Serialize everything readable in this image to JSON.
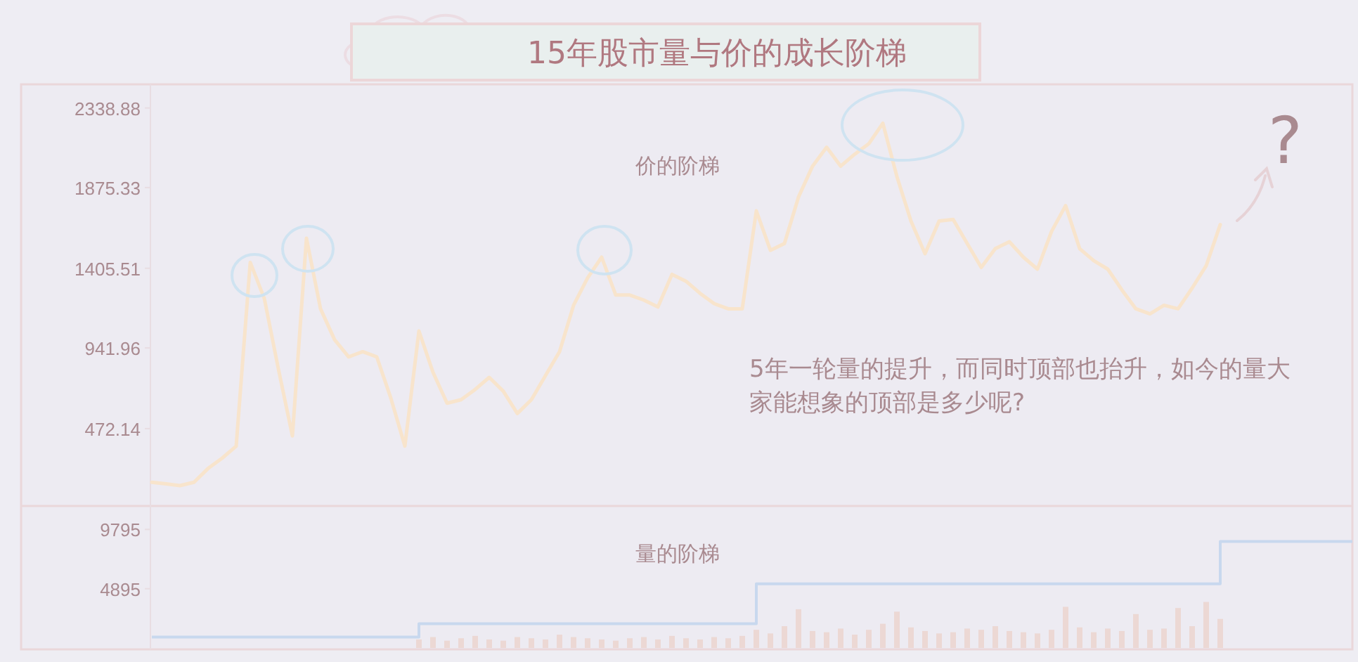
{
  "chart_data": [
    {
      "type": "line",
      "title": "15年股市量与价的成长阶梯",
      "tick_labels": "y",
      "categories": [
        null,
        null,
        null,
        null,
        null,
        null,
        null,
        null,
        null,
        null,
        null,
        null,
        null,
        null,
        null,
        null,
        null,
        null,
        null,
        null,
        null,
        null,
        null,
        null,
        null,
        null,
        null,
        null,
        null,
        null,
        null,
        null,
        null,
        null,
        null,
        null,
        null,
        null,
        null,
        null,
        null,
        null,
        null,
        null,
        null,
        null,
        null,
        null,
        null,
        null,
        null,
        null,
        null,
        null,
        null,
        null,
        null,
        null,
        null,
        null,
        null,
        null,
        null,
        null,
        null,
        null,
        null,
        null,
        null,
        null,
        null,
        null,
        null,
        null,
        null,
        null,
        null,
        null,
        null,
        null,
        null,
        null,
        null,
        null,
        null,
        null
      ],
      "series": [
        {
          "color": "#f8e4cc",
          "values": [
            160,
            150,
            140,
            160,
            240,
            300,
            370,
            1440,
            1230,
            820,
            430,
            1580,
            1170,
            990,
            890,
            920,
            890,
            650,
            370,
            1040,
            800,
            620,
            640,
            700,
            770,
            690,
            560,
            640,
            780,
            920,
            1190,
            1350,
            1470,
            1250,
            1250,
            1220,
            1180,
            1370,
            1330,
            1260,
            1200,
            1170,
            1170,
            1740,
            1510,
            1550,
            1820,
            2000,
            2110,
            2000,
            2070,
            2130,
            2250,
            1940,
            1680,
            1490,
            1680,
            1690,
            1550,
            1410,
            1520,
            1560,
            1470,
            1400,
            1620,
            1770,
            1520,
            1450,
            1400,
            1280,
            1170,
            1140,
            1190,
            1170,
            1290,
            1420,
            1660,
            null,
            null,
            null,
            null,
            null,
            null,
            null,
            null,
            null
          ]
        }
      ],
      "ylim": [
        38,
        2460
      ],
      "yticks": [
        472.14,
        941.96,
        1405.51,
        1875.33,
        2338.88
      ],
      "annotations": [
        "价的阶梯",
        "5年一轮量的提升，而同时顶部也抬升，如今的量大家能想象的顶部是多少呢?",
        "?"
      ]
    },
    {
      "type": "bar",
      "tick_labels": "y",
      "categories": [
        null,
        null,
        null,
        null,
        null,
        null,
        null,
        null,
        null,
        null,
        null,
        null,
        null,
        null,
        null,
        null,
        null,
        null,
        null,
        null,
        null,
        null,
        null,
        null,
        null,
        null,
        null,
        null,
        null,
        null,
        null,
        null,
        null,
        null,
        null,
        null,
        null,
        null,
        null,
        null,
        null,
        null,
        null,
        null,
        null,
        null,
        null,
        null,
        null,
        null,
        null,
        null,
        null,
        null,
        null,
        null,
        null,
        null,
        null,
        null,
        null,
        null,
        null,
        null,
        null,
        null,
        null,
        null,
        null,
        null,
        null,
        null,
        null,
        null,
        null,
        null,
        null,
        null,
        null,
        null,
        null,
        null,
        null,
        null,
        null,
        null
      ],
      "series": [
        {
          "color": "#ecd8d4",
          "values": [
            null,
            null,
            null,
            null,
            null,
            null,
            null,
            null,
            null,
            null,
            null,
            null,
            null,
            null,
            null,
            null,
            null,
            null,
            null,
            700,
            900,
            600,
            800,
            1000,
            700,
            600,
            900,
            800,
            700,
            1100,
            900,
            800,
            700,
            600,
            800,
            900,
            700,
            1000,
            800,
            700,
            900,
            800,
            1000,
            1500,
            1200,
            1800,
            3200,
            1400,
            1300,
            1600,
            1100,
            1500,
            2000,
            3000,
            1700,
            1400,
            1200,
            1300,
            1600,
            1500,
            1800,
            1400,
            1300,
            1200,
            1500,
            3400,
            1700,
            1300,
            1600,
            1400,
            2800,
            1500,
            1600,
            3300,
            1800,
            3800,
            2400,
            null,
            null,
            null,
            null,
            null,
            null,
            null,
            null,
            null
          ]
        },
        {
          "type": "step",
          "color": "#c8d8ee",
          "values": [
            900,
            900,
            900,
            900,
            900,
            900,
            900,
            900,
            900,
            900,
            900,
            900,
            900,
            900,
            900,
            900,
            900,
            900,
            900,
            2000,
            2000,
            2000,
            2000,
            2000,
            2000,
            2000,
            2000,
            2000,
            2000,
            2000,
            2000,
            2000,
            2000,
            2000,
            2000,
            2000,
            2000,
            2000,
            2000,
            2000,
            2000,
            2000,
            2000,
            5300,
            5300,
            5300,
            5300,
            5300,
            5300,
            5300,
            5300,
            5300,
            5300,
            5300,
            5300,
            5300,
            5300,
            5300,
            5300,
            5300,
            5300,
            5300,
            5300,
            5300,
            5300,
            5300,
            5300,
            5300,
            5300,
            5300,
            5300,
            5300,
            5300,
            5300,
            5300,
            5300,
            8800,
            8800,
            8800,
            8800,
            8800,
            8800,
            8800,
            8800,
            8800,
            8800
          ]
        }
      ],
      "ylim": [
        0,
        11500
      ],
      "yticks": [
        4895,
        9795
      ],
      "annotations": [
        "量的阶梯"
      ]
    }
  ]
}
